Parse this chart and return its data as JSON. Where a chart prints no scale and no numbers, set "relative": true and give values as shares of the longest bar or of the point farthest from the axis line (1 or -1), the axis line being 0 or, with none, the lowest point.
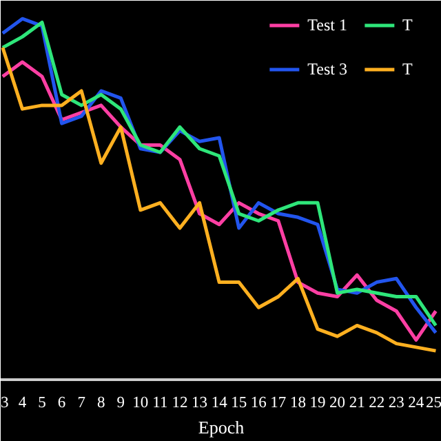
{
  "chart_data": {
    "type": "line",
    "relative": true,
    "xlabel": "Epoch",
    "x": [
      3,
      4,
      5,
      6,
      7,
      8,
      9,
      10,
      11,
      12,
      13,
      14,
      15,
      16,
      17,
      18,
      19,
      20,
      21,
      22,
      23,
      24,
      25
    ],
    "xlim": [
      2.9,
      25.3
    ],
    "xticks": [
      3,
      4,
      5,
      6,
      7,
      8,
      9,
      10,
      11,
      12,
      13,
      14,
      15,
      16,
      17,
      18,
      19,
      20,
      21,
      22,
      23,
      24,
      25
    ],
    "tick_labels": "x",
    "grid": false,
    "legend": "top right",
    "marker": "none",
    "line_style": "solid",
    "series": [
      {
        "name": "Test 1",
        "color": "#ff3fa4",
        "values": [
          0.84,
          0.88,
          0.84,
          0.72,
          0.74,
          0.76,
          0.7,
          0.65,
          0.65,
          0.61,
          0.46,
          0.43,
          0.49,
          0.46,
          0.44,
          0.27,
          0.24,
          0.23,
          0.29,
          0.22,
          0.19,
          0.11,
          0.19
        ]
      },
      {
        "name": "Test 3",
        "color": "#2255ee",
        "values": [
          0.96,
          1.0,
          0.98,
          0.71,
          0.73,
          0.8,
          0.78,
          0.64,
          0.63,
          0.69,
          0.66,
          0.67,
          0.42,
          0.49,
          0.46,
          0.45,
          0.43,
          0.25,
          0.24,
          0.27,
          0.28,
          0.2,
          0.13
        ]
      },
      {
        "name": "T",
        "color": "#2ee67a",
        "values": [
          0.92,
          0.95,
          0.99,
          0.79,
          0.76,
          0.79,
          0.75,
          0.65,
          0.63,
          0.7,
          0.64,
          0.62,
          0.46,
          0.44,
          0.47,
          0.49,
          0.49,
          0.24,
          0.25,
          0.24,
          0.23,
          0.23,
          0.15
        ]
      },
      {
        "name": "T",
        "color": "#ffb020",
        "values": [
          0.92,
          0.75,
          0.76,
          0.76,
          0.8,
          0.6,
          0.7,
          0.47,
          0.49,
          0.42,
          0.49,
          0.27,
          0.27,
          0.2,
          0.23,
          0.28,
          0.14,
          0.12,
          0.15,
          0.13,
          0.1,
          0.09,
          0.08
        ]
      }
    ]
  }
}
